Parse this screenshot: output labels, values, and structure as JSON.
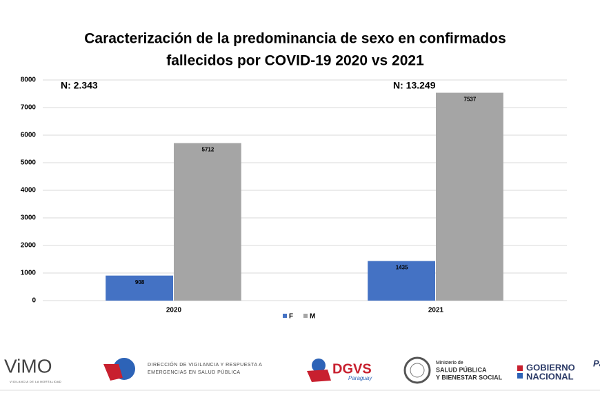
{
  "chart_data": {
    "type": "bar",
    "title": [
      "Caracterización de la predominancia de sexo en confirmados",
      "fallecidos por COVID-19 2020 vs 2021"
    ],
    "categories": [
      "2020",
      "2021"
    ],
    "series": [
      {
        "name": "F",
        "color": "#4472c4",
        "values": [
          908,
          1435
        ]
      },
      {
        "name": "M",
        "color": "#a5a5a5",
        "values": [
          5712,
          7537
        ]
      }
    ],
    "annotations": [
      "N: 2.343",
      "N: 13.249"
    ],
    "ylim": [
      0,
      8000
    ],
    "yticks": [
      0,
      1000,
      2000,
      3000,
      4000,
      5000,
      6000,
      7000,
      8000
    ],
    "grid": true,
    "legend": "bottom"
  },
  "footer": {
    "vimo": "ViMO",
    "vimo_sub": "VIGILANCIA DE LA MORTALIDAD",
    "dir": [
      "DIRECCIÓN DE VIGILANCIA Y RESPUESTA A",
      "EMERGENCIAS EN SALUD PÚBLICA"
    ],
    "dgvs": "DGVS",
    "dgvs_sub": "Paraguay",
    "ministry": [
      "Ministerio de",
      "SALUD PÚBLICA",
      "Y BIENESTAR SOCIAL"
    ],
    "gov": [
      "GOBIERNO",
      "NACIONAL"
    ],
    "cut": "Pa"
  }
}
